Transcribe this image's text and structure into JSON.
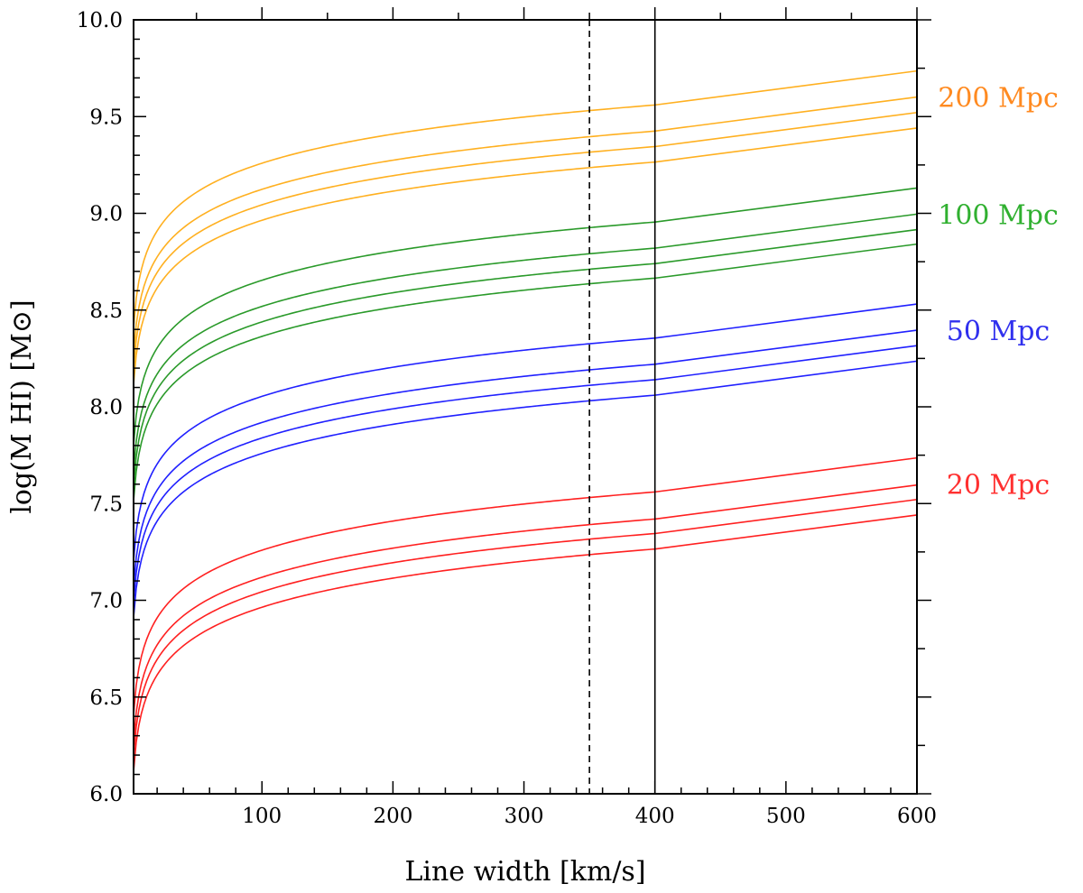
{
  "chart_data": {
    "type": "line",
    "xlabel": "Line width [km/s]",
    "ylabel": "log(M HI) [M⊙]",
    "xlim": [
      2,
      600
    ],
    "ylim": [
      6.0,
      10.0
    ],
    "x_ticks": [
      100,
      200,
      300,
      400,
      500,
      600
    ],
    "y_ticks": [
      6.0,
      6.5,
      7.0,
      7.5,
      8.0,
      8.5,
      9.0,
      9.5,
      10.0
    ],
    "x_tick_labels": [
      "100",
      "200",
      "300",
      "400",
      "500",
      "600"
    ],
    "y_tick_labels": [
      "6.0",
      "6.5",
      "7.0",
      "7.5",
      "8.0",
      "8.5",
      "9.0",
      "9.5",
      "10.0"
    ],
    "x_minor_step": 20,
    "y_minor_step": 0.1,
    "x_minor_step_top": 50,
    "y_minor_step_right": 0.25,
    "vertical_lines": [
      {
        "name": "dashed-reference-line",
        "x": 350,
        "style": "dashed"
      },
      {
        "name": "solid-reference-line",
        "x": 400,
        "style": "solid"
      }
    ],
    "break_x": 400,
    "series_model": "curves follow y = A + 0.5*log10(W/400) for W <= 400 and rise linearly by slope per km/s beyond 400",
    "groups": [
      {
        "label": "20 Mpc",
        "color": "#ff2020",
        "label_color": "#ff3030",
        "series": [
          {
            "name": "20 Mpc (1)",
            "y_at_400": 7.56,
            "slope": 0.00088
          },
          {
            "name": "20 Mpc (2)",
            "y_at_400": 7.42,
            "slope": 0.00088
          },
          {
            "name": "20 Mpc (3)",
            "y_at_400": 7.345,
            "slope": 0.00088
          },
          {
            "name": "20 Mpc (4)",
            "y_at_400": 7.265,
            "slope": 0.00088
          }
        ]
      },
      {
        "label": "50 Mpc",
        "color": "#2020ff",
        "label_color": "#3030ee",
        "series": [
          {
            "name": "50 Mpc (1)",
            "y_at_400": 8.355,
            "slope": 0.00088
          },
          {
            "name": "50 Mpc (2)",
            "y_at_400": 8.22,
            "slope": 0.00088
          },
          {
            "name": "50 Mpc (3)",
            "y_at_400": 8.14,
            "slope": 0.00088
          },
          {
            "name": "50 Mpc (4)",
            "y_at_400": 8.06,
            "slope": 0.00088
          }
        ]
      },
      {
        "label": "100 Mpc",
        "color": "#2a9a2a",
        "label_color": "#30b030",
        "series": [
          {
            "name": "100 Mpc (1)",
            "y_at_400": 8.955,
            "slope": 0.00088
          },
          {
            "name": "100 Mpc (2)",
            "y_at_400": 8.82,
            "slope": 0.00088
          },
          {
            "name": "100 Mpc (3)",
            "y_at_400": 8.74,
            "slope": 0.00088
          },
          {
            "name": "100 Mpc (4)",
            "y_at_400": 8.665,
            "slope": 0.00088
          }
        ]
      },
      {
        "label": "200 Mpc",
        "color": "#ffb020",
        "label_color": "#ff8a20",
        "series": [
          {
            "name": "200 Mpc (1)",
            "y_at_400": 9.56,
            "slope": 0.00088
          },
          {
            "name": "200 Mpc (2)",
            "y_at_400": 9.425,
            "slope": 0.00088
          },
          {
            "name": "200 Mpc (3)",
            "y_at_400": 9.345,
            "slope": 0.00088
          },
          {
            "name": "200 Mpc (4)",
            "y_at_400": 9.265,
            "slope": 0.00088
          }
        ]
      }
    ]
  }
}
